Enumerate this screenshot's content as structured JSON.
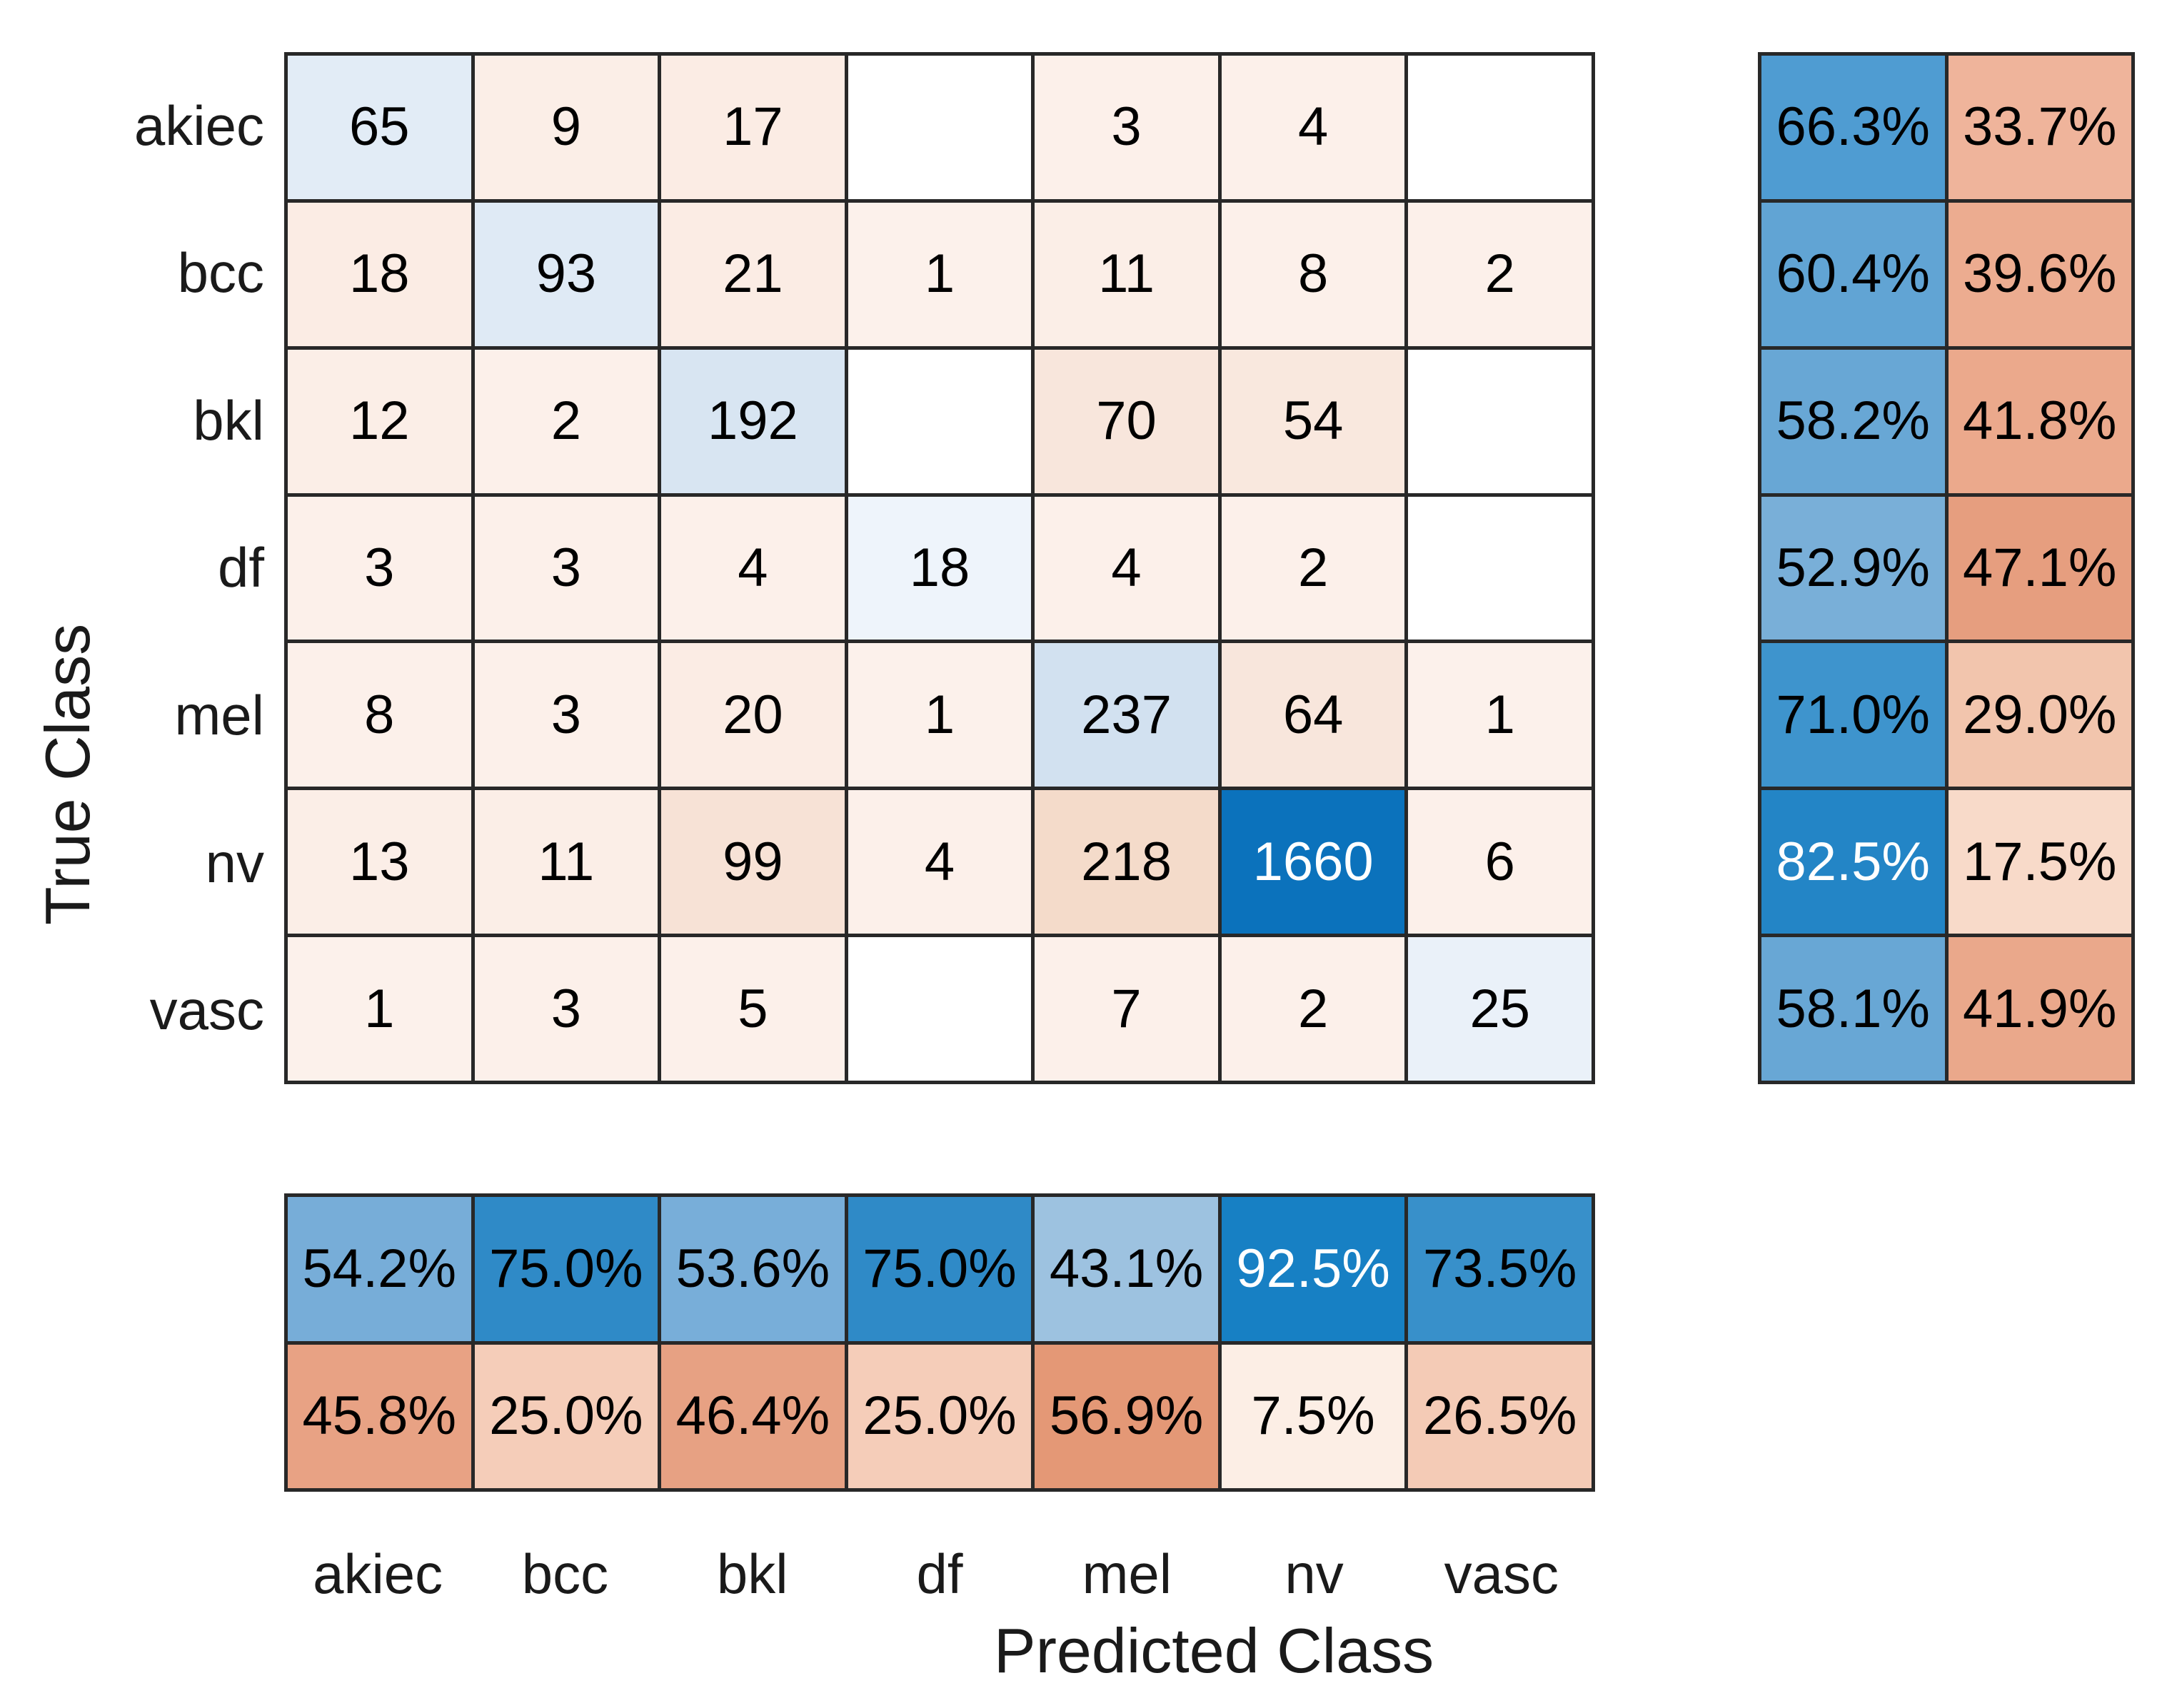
{
  "chart_data": {
    "type": "heatmap",
    "subtype": "confusion-matrix-with-summaries",
    "title": "",
    "xlabel": "Predicted Class",
    "ylabel": "True Class",
    "classes": [
      "akiec",
      "bcc",
      "bkl",
      "df",
      "mel",
      "nv",
      "vasc"
    ],
    "matrix": [
      [
        65,
        9,
        17,
        null,
        3,
        4,
        null
      ],
      [
        18,
        93,
        21,
        1,
        11,
        8,
        2
      ],
      [
        12,
        2,
        192,
        null,
        70,
        54,
        null
      ],
      [
        3,
        3,
        4,
        18,
        4,
        2,
        null
      ],
      [
        8,
        3,
        20,
        1,
        237,
        64,
        1
      ],
      [
        13,
        11,
        99,
        4,
        218,
        1660,
        6
      ],
      [
        1,
        3,
        5,
        null,
        7,
        2,
        25
      ]
    ],
    "row_summary": {
      "description": "per true-class: correctly classified % (left) and misclassified % (right)",
      "correct_pct": [
        "66.3%",
        "60.4%",
        "58.2%",
        "52.9%",
        "71.0%",
        "82.5%",
        "58.1%"
      ],
      "incorrect_pct": [
        "33.7%",
        "39.6%",
        "41.8%",
        "47.1%",
        "29.0%",
        "17.5%",
        "41.9%"
      ]
    },
    "col_summary": {
      "description": "per predicted-class: correctly classified % (top) and misclassified % (bottom)",
      "correct_pct": [
        "54.2%",
        "75.0%",
        "53.6%",
        "75.0%",
        "43.1%",
        "92.5%",
        "73.5%"
      ],
      "incorrect_pct": [
        "45.8%",
        "25.0%",
        "46.4%",
        "25.0%",
        "56.9%",
        "7.5%",
        "26.5%"
      ]
    },
    "grid": true,
    "legend_position": "none"
  },
  "colors": {
    "background": "#ffffff",
    "grid_line": "#282828",
    "diagonal_base": "#0b72bc",
    "offdiagonal_base": "#d95319",
    "dark_text": "#000000",
    "light_text": "#ffffff",
    "matrix_cells": [
      [
        "#e2ecf6",
        "#fbeee7",
        "#fbece4",
        "#ffffff",
        "#fcf0ea",
        "#fcf0ea",
        "#ffffff"
      ],
      [
        "#fbece4",
        "#dfeaf5",
        "#fbece4",
        "#fcf1eb",
        "#fbeee7",
        "#fcf0ea",
        "#fcf0ea"
      ],
      [
        "#fbeee7",
        "#fcf0ea",
        "#d8e5f2",
        "#ffffff",
        "#f8e6dc",
        "#f9e8de",
        "#ffffff"
      ],
      [
        "#fcf0ea",
        "#fcf0ea",
        "#fcf0ea",
        "#eef4fb",
        "#fcf0ea",
        "#fcf0ea",
        "#ffffff"
      ],
      [
        "#fcf0ea",
        "#fcf0ea",
        "#fbece4",
        "#fcf1eb",
        "#d2e1f0",
        "#f8e6dc",
        "#fcf1eb"
      ],
      [
        "#fbeee7",
        "#fbeee7",
        "#f7e2d6",
        "#fcf0ea",
        "#f4dbca",
        "#0b72bc",
        "#fcf0ea"
      ],
      [
        "#fcf1eb",
        "#fcf0ea",
        "#fcf0ea",
        "#ffffff",
        "#fcf0ea",
        "#fcf0ea",
        "#eaf1f9"
      ]
    ],
    "row_summary_cells": [
      [
        "#4f9cd2",
        "#efb49b"
      ],
      [
        "#61a4d4",
        "#ecac90"
      ],
      [
        "#68a7d5",
        "#eba98c"
      ],
      [
        "#79afd8",
        "#e69e7f"
      ],
      [
        "#3e94cd",
        "#f2c5ad"
      ],
      [
        "#2385c6",
        "#f8dac9"
      ],
      [
        "#68a7d5",
        "#eaa88b"
      ]
    ],
    "col_summary_cells": [
      [
        "#77add8",
        "#2f8ac7",
        "#78aed9",
        "#2f8ac7",
        "#9dc2e0",
        "#1780c4",
        "#3890ca"
      ],
      [
        "#e8a284",
        "#f5cdb9",
        "#e7a183",
        "#f5cdb9",
        "#e49876",
        "#fceee5",
        "#f4cbb6"
      ]
    ]
  }
}
